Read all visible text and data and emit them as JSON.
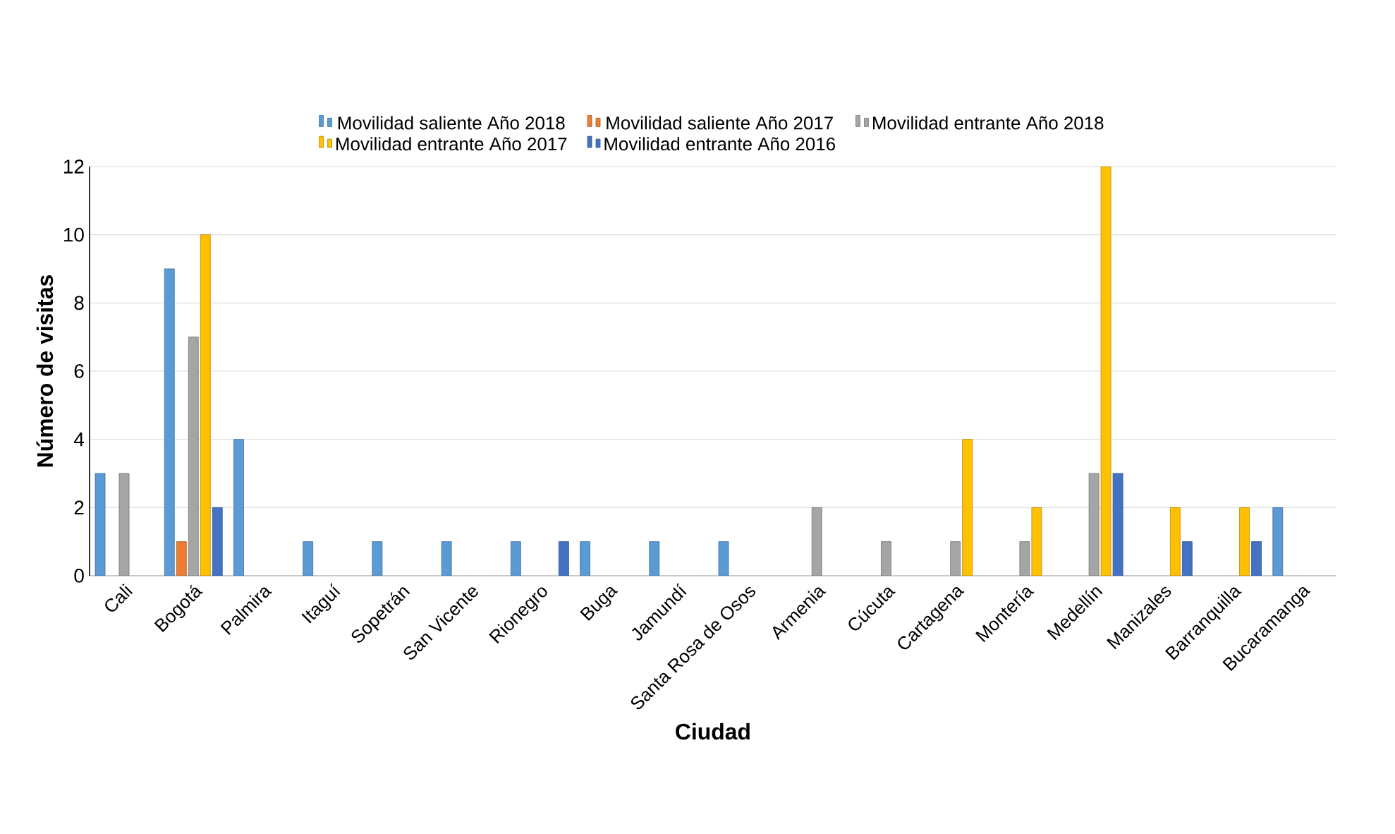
{
  "chart_data": {
    "type": "bar",
    "xlabel": "Ciudad",
    "ylabel": "Número de visitas",
    "categories": [
      "Cali",
      "Bogotá",
      "Palmira",
      "Itaguí",
      "Sopetrán",
      "San Vicente",
      "Rionegro",
      "Buga",
      "Jamundí",
      "Santa Rosa de Osos",
      "Armenia",
      "Cúcuta",
      "Cartagena",
      "Montería",
      "Medellín",
      "Manizales",
      "Barranquilla",
      "Bucaramanga"
    ],
    "series": [
      {
        "name": "Movilidad saliente Año 2018",
        "color": "#5b9bd5",
        "values": [
          3,
          9,
          4,
          1,
          1,
          1,
          1,
          1,
          1,
          1,
          null,
          null,
          null,
          null,
          null,
          null,
          null,
          2
        ]
      },
      {
        "name": "Movilidad saliente Año 2017",
        "color": "#ed7d31",
        "values": [
          null,
          1,
          null,
          null,
          null,
          null,
          null,
          null,
          null,
          null,
          null,
          null,
          null,
          null,
          null,
          null,
          null,
          null
        ]
      },
      {
        "name": "Movilidad entrante Año 2018",
        "color": "#a5a5a5",
        "values": [
          3,
          7,
          null,
          null,
          null,
          null,
          null,
          null,
          null,
          null,
          2,
          1,
          1,
          1,
          3,
          null,
          null,
          null
        ]
      },
      {
        "name": "Movilidad entrante Año 2017",
        "color": "#ffc000",
        "values": [
          null,
          10,
          null,
          null,
          null,
          null,
          null,
          null,
          null,
          null,
          null,
          null,
          4,
          2,
          12,
          2,
          2,
          null
        ]
      },
      {
        "name": "Movilidad entrante Año 2016",
        "color": "#4472c4",
        "values": [
          null,
          2,
          null,
          null,
          null,
          null,
          1,
          null,
          null,
          null,
          null,
          null,
          null,
          null,
          3,
          1,
          1,
          null
        ]
      }
    ],
    "ylim": [
      0,
      12
    ],
    "yticks": [
      0,
      2,
      4,
      6,
      8,
      10,
      12
    ],
    "grid": "y",
    "legend": "top"
  }
}
